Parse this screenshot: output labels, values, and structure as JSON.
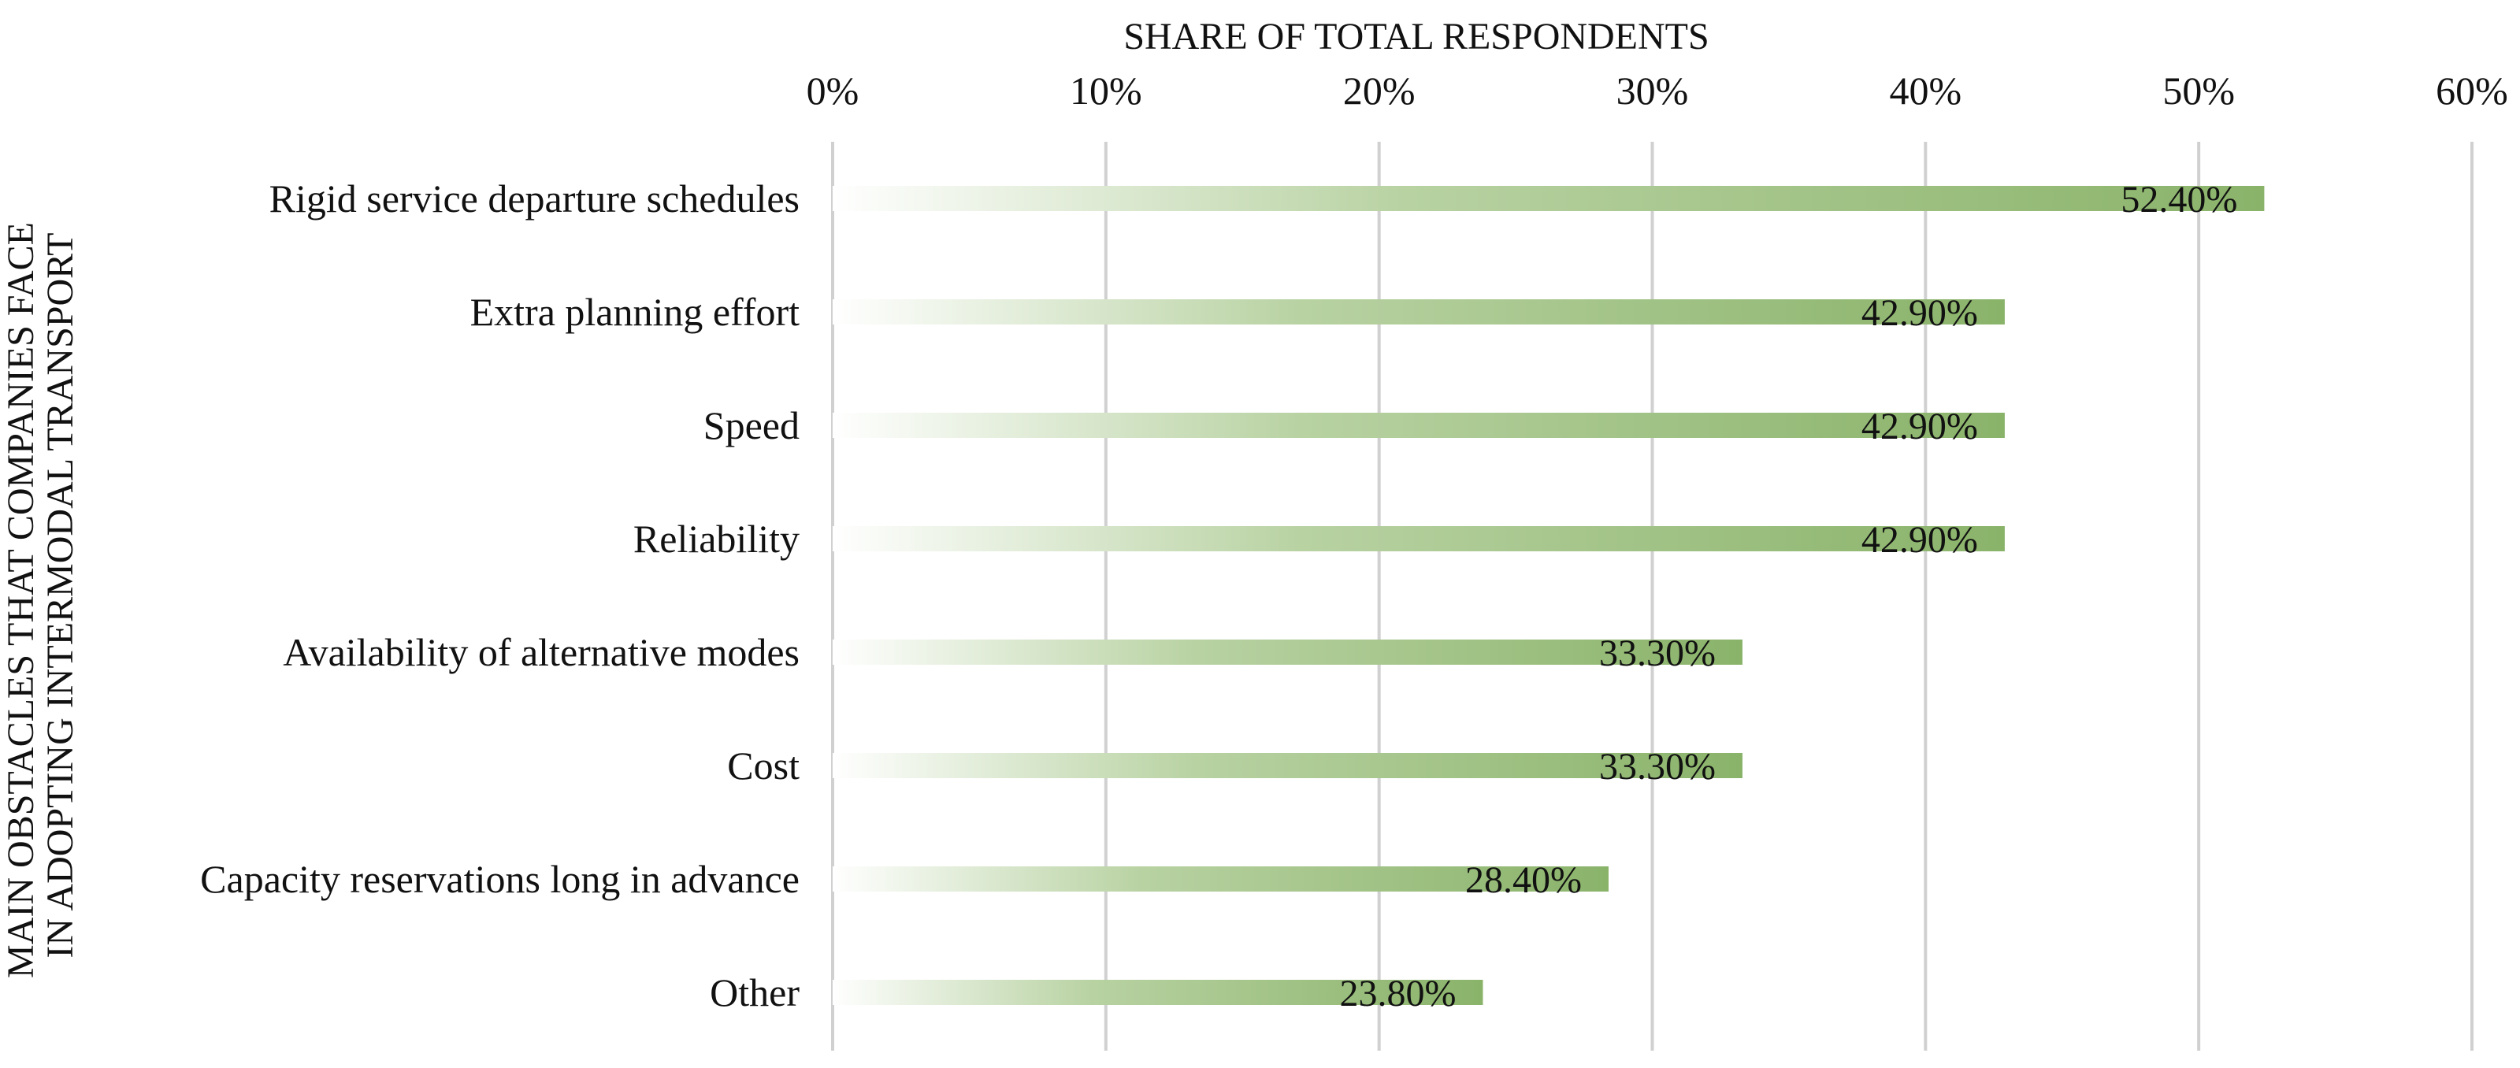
{
  "chart_data": {
    "type": "bar",
    "orientation": "horizontal",
    "xlabel": "SHARE OF TOTAL RESPONDENTS",
    "ylabel_lines": [
      "MAIN OBSTACLES THAT COMPANIES FACE",
      "IN ADOPTING INTERMODAL TRANSPORT"
    ],
    "categories": [
      "Rigid service departure schedules",
      "Extra planning effort",
      "Speed",
      "Reliability",
      "Availability of alternative modes",
      "Cost",
      "Capacity reservations long in advance",
      "Other"
    ],
    "values": [
      52.4,
      42.9,
      42.9,
      42.9,
      33.3,
      33.3,
      28.4,
      23.8
    ],
    "value_labels": [
      "52.40%",
      "42.90%",
      "42.90%",
      "42.90%",
      "33.30%",
      "33.30%",
      "28.40%",
      "23.80%"
    ],
    "xlim": [
      0,
      60
    ],
    "x_ticks": [
      0,
      10,
      20,
      30,
      40,
      50,
      60
    ],
    "x_tick_labels": [
      "0%",
      "10%",
      "20%",
      "30%",
      "40%",
      "50%",
      "60%"
    ],
    "x_axis_position": "top",
    "grid": true,
    "legend": false,
    "colors": {
      "bar_start": "#ffffff",
      "bar_end": "#8ab36a",
      "grid": "#d0d0d0",
      "text": "#111111"
    }
  }
}
